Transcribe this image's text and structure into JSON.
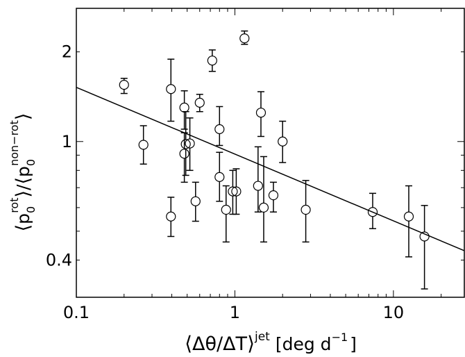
{
  "chart_data": {
    "type": "scatter",
    "title": "",
    "xlabel": {
      "angle_open": "⟨",
      "main": "Δθ/ΔT",
      "angle_close": "⟩",
      "superscript": "jet",
      "unit_open": "[deg d",
      "unit_exp": "−1",
      "unit_close": "]"
    },
    "ylabel": {
      "angle1_open": "⟨",
      "p1": "p",
      "sub1": "0",
      "sup1": "rot",
      "angle1_close": "⟩",
      "slash": "/",
      "angle2_open": "⟨",
      "p2": "p",
      "sub2": "0",
      "sup2": "non−rot",
      "angle2_close": "⟩"
    },
    "x_scale": "log",
    "y_scale": "log",
    "xlim": [
      0.1,
      28
    ],
    "ylim": [
      0.3,
      2.8
    ],
    "x_ticks": [
      {
        "value": 0.1,
        "label": "0.1"
      },
      {
        "value": 1,
        "label": "1"
      },
      {
        "value": 10,
        "label": "10"
      }
    ],
    "y_ticks": [
      {
        "value": 0.4,
        "label": "0.4"
      },
      {
        "value": 1,
        "label": "1"
      },
      {
        "value": 2,
        "label": "2"
      }
    ],
    "grid": false,
    "legend": "none",
    "points": [
      {
        "x": 0.2,
        "y": 1.55,
        "ylo": 1.45,
        "yhi": 1.63
      },
      {
        "x": 0.265,
        "y": 0.975,
        "ylo": 0.84,
        "yhi": 1.13
      },
      {
        "x": 0.395,
        "y": 0.56,
        "ylo": 0.48,
        "yhi": 0.65
      },
      {
        "x": 0.395,
        "y": 1.5,
        "ylo": 1.17,
        "yhi": 1.89
      },
      {
        "x": 0.48,
        "y": 0.91,
        "ylo": 0.73,
        "yhi": 1.07
      },
      {
        "x": 0.48,
        "y": 1.3,
        "ylo": 1.1,
        "yhi": 1.48
      },
      {
        "x": 0.49,
        "y": 0.98,
        "ylo": 0.77,
        "yhi": 1.26
      },
      {
        "x": 0.52,
        "y": 0.985,
        "ylo": 0.8,
        "yhi": 1.2
      },
      {
        "x": 0.565,
        "y": 0.63,
        "ylo": 0.54,
        "yhi": 0.73
      },
      {
        "x": 0.6,
        "y": 1.35,
        "ylo": 1.26,
        "yhi": 1.44
      },
      {
        "x": 0.72,
        "y": 1.87,
        "ylo": 1.72,
        "yhi": 2.03
      },
      {
        "x": 0.8,
        "y": 1.1,
        "ylo": 0.97,
        "yhi": 1.31
      },
      {
        "x": 0.8,
        "y": 0.76,
        "ylo": 0.63,
        "yhi": 0.92
      },
      {
        "x": 0.88,
        "y": 0.59,
        "ylo": 0.46,
        "yhi": 0.71
      },
      {
        "x": 0.97,
        "y": 0.68,
        "ylo": 0.57,
        "yhi": 0.8
      },
      {
        "x": 1.02,
        "y": 0.68,
        "ylo": 0.57,
        "yhi": 0.81
      },
      {
        "x": 1.15,
        "y": 2.22,
        "ylo": 2.12,
        "yhi": 2.35
      },
      {
        "x": 1.4,
        "y": 0.71,
        "ylo": 0.58,
        "yhi": 0.96
      },
      {
        "x": 1.46,
        "y": 1.25,
        "ylo": 1.04,
        "yhi": 1.47
      },
      {
        "x": 1.52,
        "y": 0.6,
        "ylo": 0.46,
        "yhi": 0.89
      },
      {
        "x": 1.75,
        "y": 0.66,
        "ylo": 0.58,
        "yhi": 0.73
      },
      {
        "x": 2.0,
        "y": 1.0,
        "ylo": 0.85,
        "yhi": 1.17
      },
      {
        "x": 2.8,
        "y": 0.59,
        "ylo": 0.46,
        "yhi": 0.74
      },
      {
        "x": 7.4,
        "y": 0.58,
        "ylo": 0.51,
        "yhi": 0.67
      },
      {
        "x": 12.5,
        "y": 0.56,
        "ylo": 0.41,
        "yhi": 0.71
      },
      {
        "x": 15.7,
        "y": 0.48,
        "ylo": 0.32,
        "yhi": 0.61
      }
    ],
    "fit_line": {
      "x": [
        0.1,
        28
      ],
      "y": [
        1.52,
        0.43
      ]
    }
  }
}
